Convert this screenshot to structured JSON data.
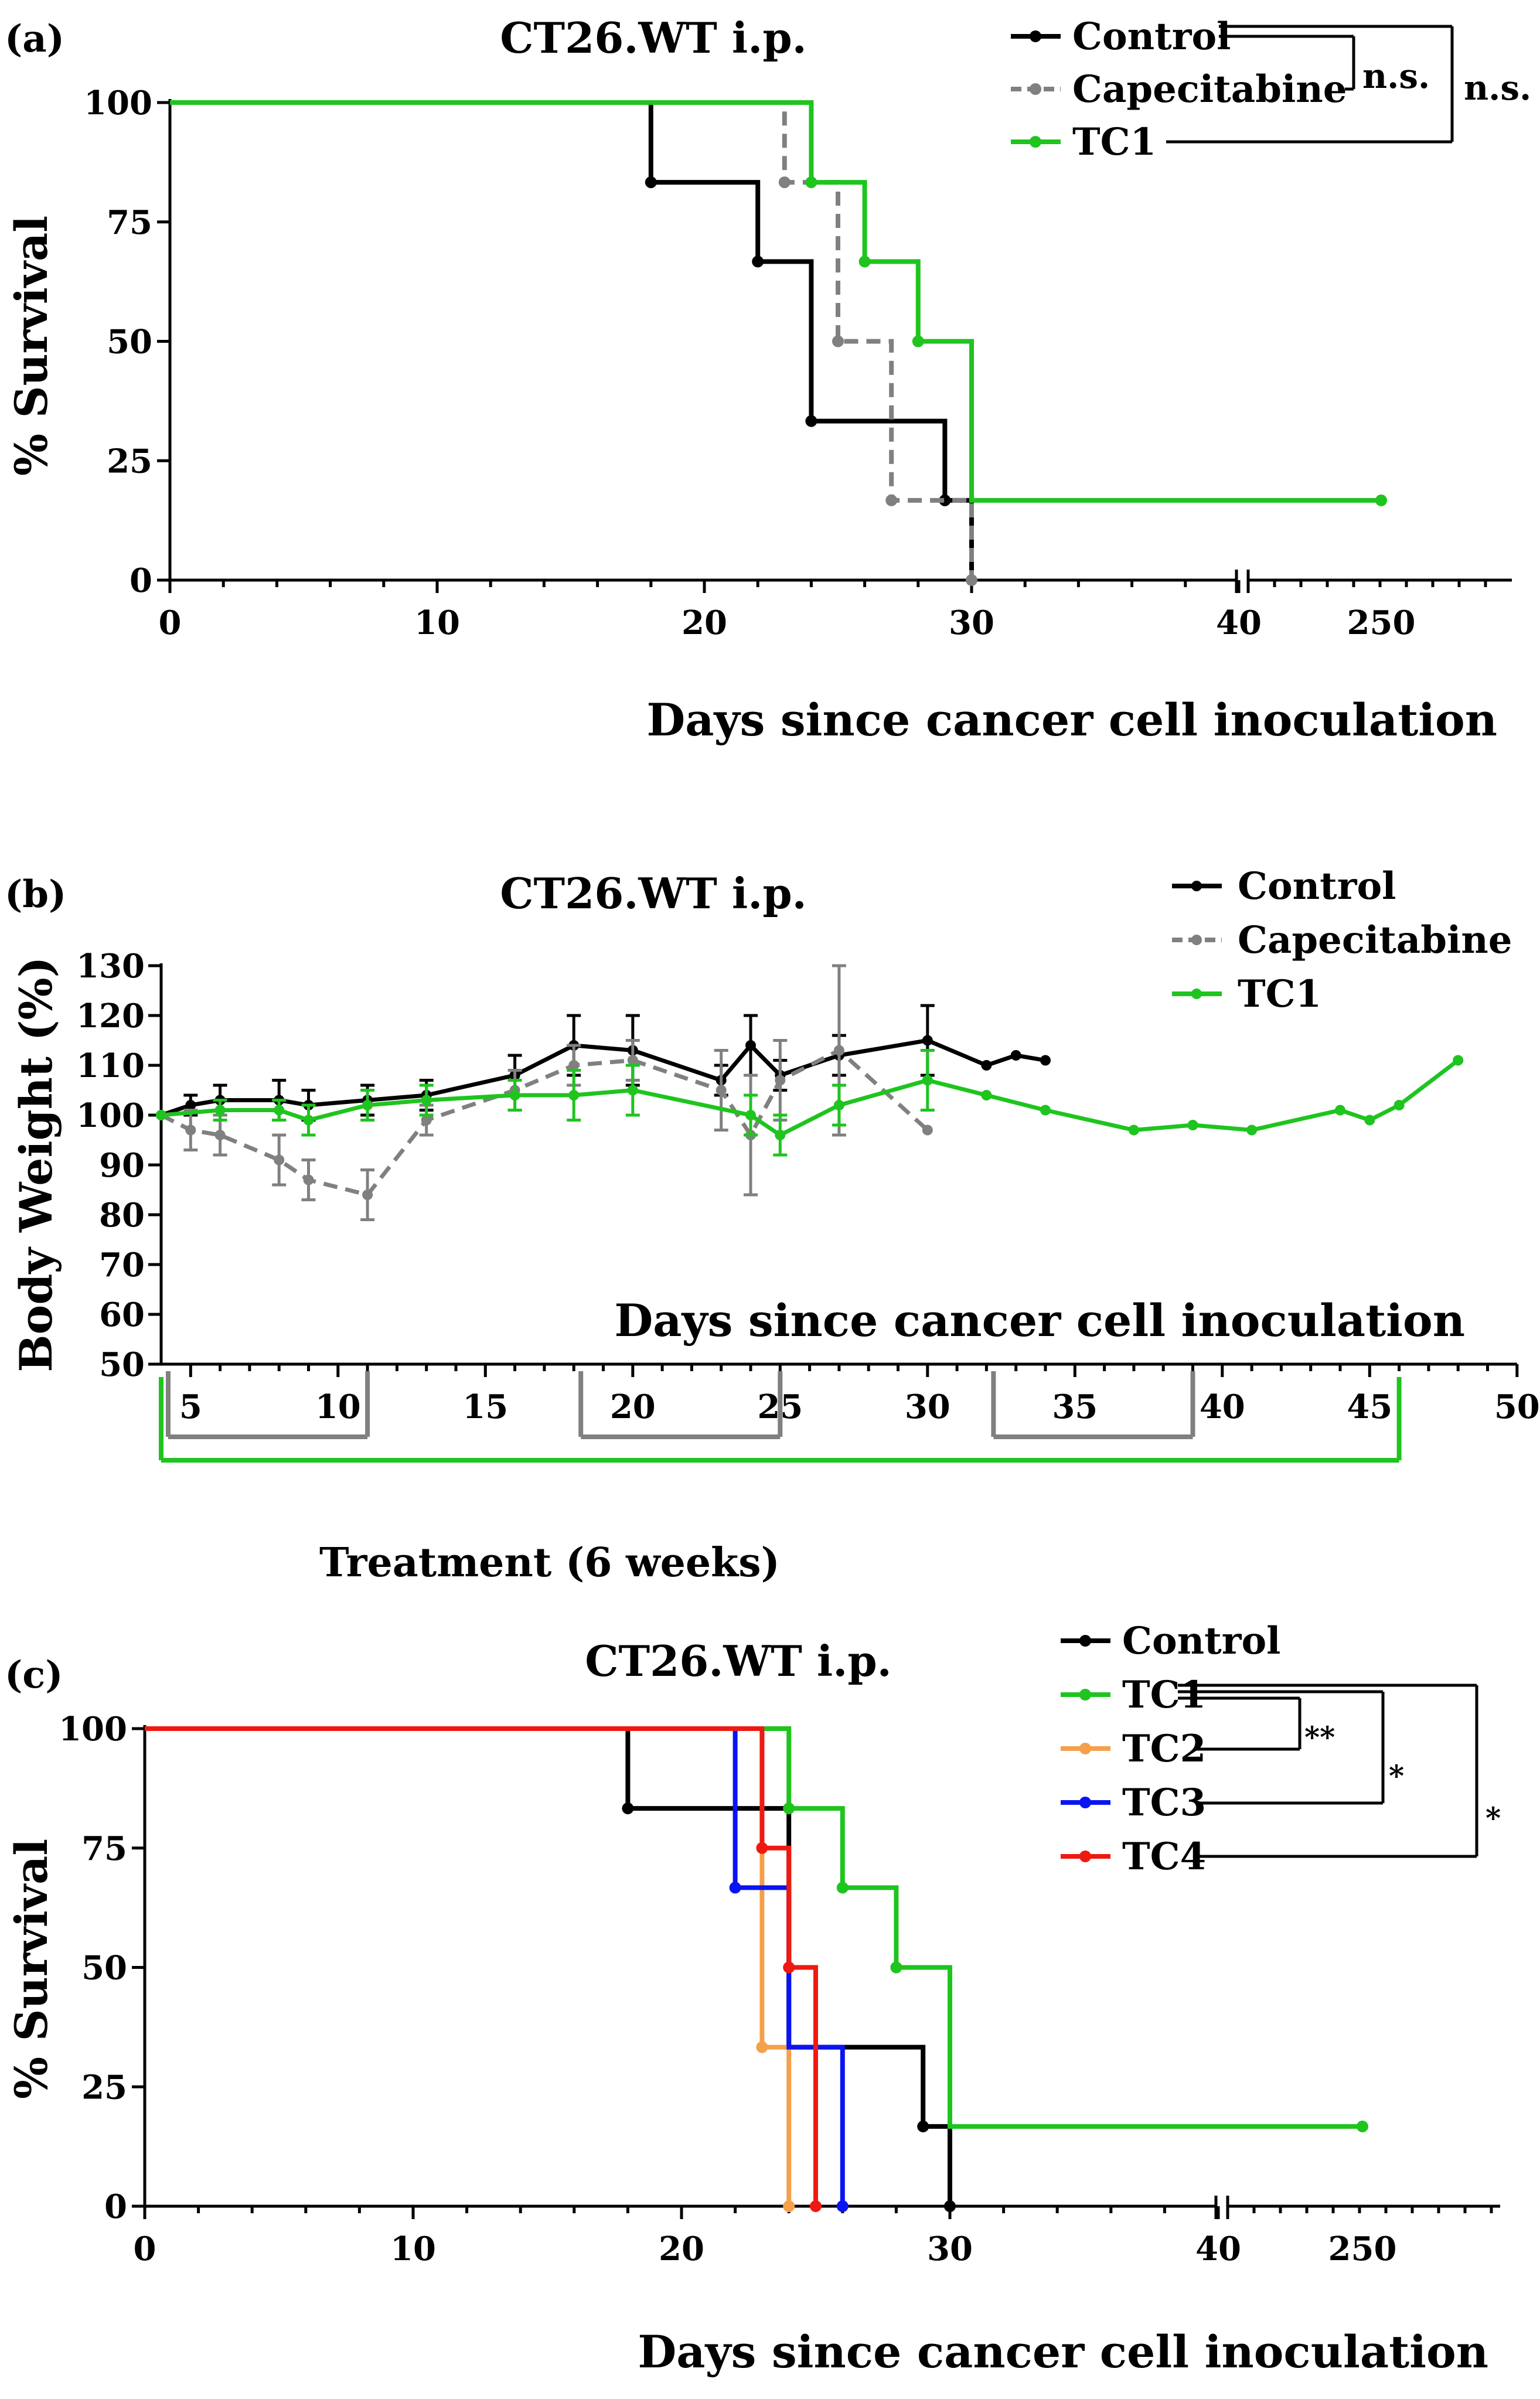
{
  "colors": {
    "control": "#000000",
    "capecitabine": "#808080",
    "tc1": "#1fc41f",
    "tc2": "#f5a04a",
    "tc3": "#0a14f2",
    "tc4": "#ee1a12"
  },
  "chart_data": [
    {
      "panel": "(a)",
      "type": "line",
      "subtype": "kaplan-meier-step",
      "title": "CT26.WT i.p.",
      "xlabel": "Days since cancer cell inoculation",
      "ylabel": "% Survival",
      "y_ticks": [
        "0",
        "25",
        "50",
        "75",
        "100"
      ],
      "x_ticks": [
        "0",
        "10",
        "20",
        "30",
        "40",
        "250"
      ],
      "axis_break": "between 40 and 250",
      "ylim": [
        0,
        100
      ],
      "legend_position": "top-right",
      "series": [
        {
          "name": "Control",
          "color_key": "control",
          "style": "solid",
          "steps": [
            [
              0,
              100
            ],
            [
              18,
              83.3
            ],
            [
              22,
              66.7
            ],
            [
              24,
              33.3
            ],
            [
              29,
              16.7
            ],
            [
              30,
              0
            ]
          ],
          "markers": [
            [
              18,
              83.3
            ],
            [
              22,
              66.7
            ],
            [
              24,
              33.3
            ],
            [
              29,
              16.7
            ]
          ]
        },
        {
          "name": "Capecitabine",
          "color_key": "capecitabine",
          "style": "dashed",
          "steps": [
            [
              0,
              100
            ],
            [
              23,
              83.3
            ],
            [
              25,
              50
            ],
            [
              27,
              16.7
            ],
            [
              30,
              0
            ]
          ],
          "markers": [
            [
              23,
              83.3
            ],
            [
              25,
              50
            ],
            [
              27,
              16.7
            ],
            [
              30,
              0
            ]
          ]
        },
        {
          "name": "TC1",
          "color_key": "tc1",
          "style": "solid",
          "steps": [
            [
              0,
              100
            ],
            [
              24,
              83.3
            ],
            [
              26,
              66.7
            ],
            [
              28,
              50
            ],
            [
              30,
              16.7
            ],
            [
              250,
              16.7
            ]
          ],
          "markers": [
            [
              24,
              83.3
            ],
            [
              26,
              66.7
            ],
            [
              28,
              50
            ],
            [
              250,
              16.7
            ]
          ]
        }
      ],
      "significance": [
        {
          "groups": [
            "Control",
            "Capecitabine"
          ],
          "label": "n.s."
        },
        {
          "groups": [
            "Control",
            "TC1"
          ],
          "label": "n.s."
        }
      ]
    },
    {
      "panel": "(b)",
      "type": "line",
      "title": "CT26.WT i.p.",
      "xlabel": "Days since cancer cell inoculation",
      "ylabel": "Body Weight (%)",
      "y_ticks": [
        "50",
        "60",
        "70",
        "80",
        "90",
        "100",
        "110",
        "120",
        "130"
      ],
      "x_ticks": [
        "5",
        "10",
        "15",
        "20",
        "25",
        "30",
        "35",
        "40",
        "45",
        "50"
      ],
      "xlim": [
        4,
        50
      ],
      "ylim": [
        50,
        130
      ],
      "legend_position": "top-right",
      "series": [
        {
          "name": "Control",
          "color_key": "control",
          "style": "solid",
          "x": [
            4,
            5,
            6,
            8,
            9,
            11,
            13,
            16,
            18,
            20,
            23,
            24,
            25,
            27,
            30,
            32,
            33,
            34
          ],
          "y": [
            100,
            102,
            103,
            103,
            102,
            103,
            104,
            108,
            114,
            113,
            107,
            114,
            108,
            112,
            115,
            110,
            112,
            111
          ],
          "err": [
            0,
            2,
            3,
            4,
            3,
            3,
            3,
            4,
            6,
            7,
            3,
            6,
            3,
            4,
            7,
            0,
            0,
            0
          ]
        },
        {
          "name": "Capecitabine",
          "color_key": "capecitabine",
          "style": "dashed",
          "x": [
            4,
            5,
            6,
            8,
            9,
            11,
            13,
            16,
            18,
            20,
            23,
            24,
            25,
            27,
            30
          ],
          "y": [
            100,
            97,
            96,
            91,
            87,
            84,
            99,
            105,
            110,
            111,
            105,
            96,
            107,
            113,
            97
          ],
          "err": [
            0,
            4,
            4,
            5,
            4,
            5,
            3,
            4,
            4,
            4,
            8,
            12,
            8,
            17,
            0
          ]
        },
        {
          "name": "TC1",
          "color_key": "tc1",
          "style": "solid",
          "x": [
            4,
            6,
            8,
            9,
            11,
            13,
            16,
            18,
            20,
            24,
            25,
            27,
            30,
            32,
            34,
            37,
            39,
            41,
            44,
            45,
            46,
            48
          ],
          "y": [
            100,
            101,
            101,
            99,
            102,
            103,
            104,
            104,
            105,
            100,
            96,
            102,
            107,
            104,
            101,
            97,
            98,
            97,
            101,
            99,
            102,
            111
          ],
          "err": [
            0,
            2,
            2,
            3,
            3,
            3,
            3,
            5,
            5,
            4,
            4,
            4,
            6,
            0,
            0,
            0,
            0,
            0,
            0,
            0,
            0,
            0
          ]
        }
      ],
      "treatment": {
        "label": "Treatment (6 weeks)",
        "capecitabine_periods": [
          [
            4,
            11
          ],
          [
            18,
            25
          ],
          [
            32,
            39
          ]
        ],
        "tc1_period": [
          4,
          46
        ]
      }
    },
    {
      "panel": "(c)",
      "type": "line",
      "subtype": "kaplan-meier-step",
      "title": "CT26.WT i.p.",
      "xlabel": "Days since cancer cell inoculation",
      "ylabel": "% Survival",
      "y_ticks": [
        "0",
        "25",
        "50",
        "75",
        "100"
      ],
      "x_ticks": [
        "0",
        "10",
        "20",
        "30",
        "40",
        "250"
      ],
      "axis_break": "between 40 and 250",
      "ylim": [
        0,
        100
      ],
      "legend_position": "top-right",
      "series": [
        {
          "name": "Control",
          "color_key": "control",
          "style": "solid",
          "steps": [
            [
              0,
              100
            ],
            [
              18,
              83.3
            ],
            [
              24,
              33.3
            ],
            [
              29,
              16.7
            ],
            [
              30,
              0
            ]
          ],
          "markers": [
            [
              18,
              83.3
            ],
            [
              29,
              16.7
            ],
            [
              30,
              0
            ]
          ]
        },
        {
          "name": "TC1",
          "color_key": "tc1",
          "style": "solid",
          "steps": [
            [
              0,
              100
            ],
            [
              24,
              83.3
            ],
            [
              26,
              66.7
            ],
            [
              28,
              50
            ],
            [
              30,
              16.7
            ],
            [
              250,
              16.7
            ]
          ],
          "markers": [
            [
              24,
              83.3
            ],
            [
              26,
              66.7
            ],
            [
              28,
              50
            ],
            [
              250,
              16.7
            ]
          ]
        },
        {
          "name": "TC2",
          "color_key": "tc2",
          "style": "solid",
          "steps": [
            [
              0,
              100
            ],
            [
              23,
              33.3
            ],
            [
              24,
              0
            ]
          ],
          "markers": [
            [
              23,
              33.3
            ],
            [
              24,
              0
            ]
          ]
        },
        {
          "name": "TC3",
          "color_key": "tc3",
          "style": "solid",
          "steps": [
            [
              0,
              100
            ],
            [
              22,
              66.7
            ],
            [
              24,
              33.3
            ],
            [
              26,
              0
            ]
          ],
          "markers": [
            [
              22,
              66.7
            ],
            [
              26,
              0
            ]
          ]
        },
        {
          "name": "TC4",
          "color_key": "tc4",
          "style": "solid",
          "steps": [
            [
              0,
              100
            ],
            [
              23,
              75
            ],
            [
              24,
              50
            ],
            [
              25,
              0
            ]
          ],
          "markers": [
            [
              23,
              75
            ],
            [
              24,
              50
            ],
            [
              25,
              0
            ]
          ]
        }
      ],
      "significance": [
        {
          "groups": [
            "TC1",
            "TC2"
          ],
          "label": "**"
        },
        {
          "groups": [
            "TC1",
            "TC3"
          ],
          "label": "*"
        },
        {
          "groups": [
            "TC1",
            "TC4"
          ],
          "label": "*"
        }
      ]
    }
  ]
}
